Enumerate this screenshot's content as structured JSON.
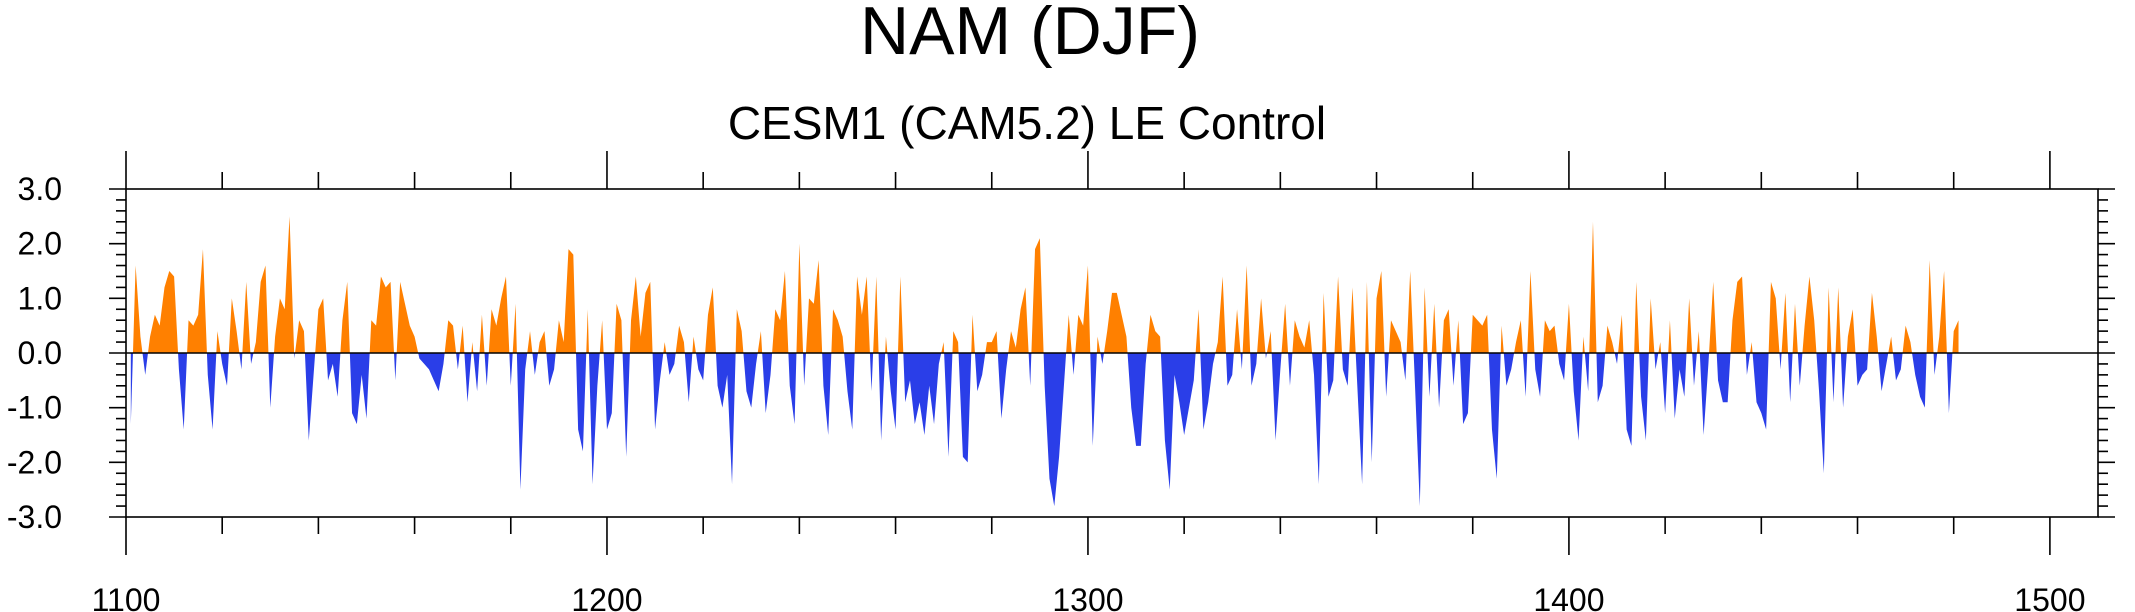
{
  "chart_data": {
    "type": "area",
    "title": "NAM (DJF)",
    "subtitle": "CESM1 (CAM5.2) LE Control",
    "xlabel": "",
    "ylabel": "",
    "xlim": [
      1100,
      1510
    ],
    "ylim": [
      -3.0,
      3.0
    ],
    "x_major_ticks": [
      1100,
      1200,
      1300,
      1400,
      1500
    ],
    "x_major_tick_labels": [
      "1100",
      "1200",
      "1300",
      "1400",
      "1500"
    ],
    "x_minor_tick_step": 20,
    "y_ticks": [
      3.0,
      2.0,
      1.0,
      0.0,
      -1.0,
      -2.0,
      -3.0
    ],
    "y_tick_labels": [
      "3.0",
      "2.0",
      "1.0",
      "0.0",
      "-1.0",
      "-2.0",
      "-3.0"
    ],
    "y_minor_tick_step": 0.2,
    "positive_color": "#ff8000",
    "negative_color": "#2a3ee8",
    "grid": false,
    "series": [
      {
        "x_start": 1101,
        "x_step": 1,
        "values": [
          -1.3,
          1.6,
          0.3,
          -0.4,
          0.3,
          0.7,
          0.5,
          1.2,
          1.5,
          1.4,
          -0.3,
          -1.4,
          0.6,
          0.5,
          0.7,
          1.9,
          -0.4,
          -1.4,
          0.4,
          -0.2,
          -0.6,
          1.0,
          0.4,
          -0.3,
          1.3,
          -0.2,
          0.2,
          1.3,
          1.6,
          -1.0,
          0.3,
          1.0,
          0.8,
          2.5,
          -0.1,
          0.6,
          0.4,
          -1.6,
          -0.4,
          0.8,
          1.0,
          -0.5,
          -0.2,
          -0.8,
          0.6,
          1.3,
          -1.1,
          -1.3,
          -0.4,
          -1.2,
          0.6,
          0.5,
          1.4,
          1.2,
          1.3,
          -0.5,
          1.3,
          0.9,
          0.5,
          0.3,
          -0.1,
          -0.2,
          -0.3,
          -0.5,
          -0.7,
          -0.2,
          0.6,
          0.5,
          -0.3,
          0.5,
          -0.9,
          0.2,
          -0.7,
          0.7,
          -0.6,
          0.8,
          0.5,
          1.0,
          1.4,
          -0.6,
          0.9,
          -2.5,
          -0.3,
          0.4,
          -0.4,
          0.2,
          0.4,
          -0.6,
          -0.3,
          0.6,
          0.2,
          1.9,
          1.8,
          -1.4,
          -1.8,
          0.8,
          -2.4,
          -0.6,
          0.6,
          -1.4,
          -1.1,
          0.9,
          0.6,
          -1.9,
          0.6,
          1.4,
          0.3,
          1.1,
          1.3,
          -1.4,
          -0.5,
          0.2,
          -0.4,
          -0.2,
          0.5,
          0.2,
          -0.9,
          0.3,
          -0.3,
          -0.5,
          0.7,
          1.2,
          -0.6,
          -1.0,
          -0.4,
          -2.4,
          0.8,
          0.4,
          -0.7,
          -1.0,
          -0.2,
          0.4,
          -1.1,
          -0.4,
          0.8,
          0.6,
          1.5,
          -0.6,
          -1.3,
          2.0,
          -0.6,
          1.0,
          0.9,
          1.7,
          -0.6,
          -1.5,
          0.8,
          0.6,
          0.3,
          -0.7,
          -1.4,
          1.4,
          0.7,
          1.4,
          -0.7,
          1.4,
          -1.6,
          0.3,
          -0.7,
          -1.4,
          1.4,
          -0.9,
          -0.5,
          -1.3,
          -0.9,
          -1.5,
          -0.6,
          -1.3,
          -0.2,
          0.2,
          -1.9,
          0.4,
          0.2,
          -1.9,
          -2.0,
          0.7,
          -0.7,
          -0.4,
          0.2,
          0.2,
          0.4,
          -1.2,
          -0.3,
          0.4,
          0.1,
          0.8,
          1.2,
          -0.6,
          1.9,
          2.1,
          -0.6,
          -2.3,
          -2.8,
          -1.9,
          -0.6,
          0.7,
          -0.4,
          0.7,
          0.5,
          1.6,
          -1.7,
          0.3,
          -0.2,
          0.4,
          1.1,
          1.1,
          0.7,
          0.3,
          -1.0,
          -1.7,
          -1.7,
          -0.2,
          0.7,
          0.4,
          0.3,
          -1.6,
          -2.5,
          -0.4,
          -0.9,
          -1.5,
          -1.0,
          -0.5,
          0.8,
          -1.4,
          -0.9,
          -0.2,
          0.2,
          1.4,
          -0.6,
          -0.4,
          0.8,
          -0.3,
          1.6,
          -0.6,
          -0.2,
          1.0,
          -0.1,
          0.4,
          -1.6,
          -0.3,
          0.9,
          -0.6,
          0.6,
          0.3,
          0.1,
          0.6,
          -0.4,
          -2.4,
          1.1,
          -0.8,
          -0.5,
          1.4,
          -0.3,
          -0.6,
          1.2,
          -0.6,
          -2.4,
          1.3,
          -2.0,
          1.0,
          1.5,
          -0.8,
          0.6,
          0.4,
          0.2,
          -0.5,
          1.5,
          -0.6,
          -2.8,
          1.2,
          -0.8,
          0.9,
          -1.0,
          0.6,
          0.8,
          -0.6,
          0.6,
          -1.3,
          -1.1,
          0.7,
          0.6,
          0.5,
          0.7,
          -1.4,
          -2.3,
          0.5,
          -0.6,
          -0.3,
          0.2,
          0.6,
          -0.8,
          1.5,
          -0.3,
          -0.8,
          0.6,
          0.4,
          0.5,
          -0.2,
          -0.5,
          0.9,
          -0.7,
          -1.6,
          0.3,
          -0.7,
          2.4,
          -0.9,
          -0.6,
          0.5,
          0.2,
          -0.2,
          0.7,
          -1.4,
          -1.7,
          1.3,
          -0.8,
          -1.6,
          1.0,
          -0.3,
          0.2,
          -1.1,
          0.6,
          -1.2,
          -0.3,
          -0.8,
          1.0,
          -0.6,
          0.4,
          -1.5,
          -0.2,
          1.3,
          -0.5,
          -0.9,
          -0.9,
          0.6,
          1.3,
          1.4,
          -0.4,
          0.2,
          -0.9,
          -1.1,
          -1.4,
          1.3,
          1.0,
          -0.3,
          1.1,
          -0.9,
          0.9,
          -0.6,
          0.5,
          1.4,
          0.6,
          -0.7,
          -2.2,
          1.2,
          -0.9,
          1.2,
          -1.0,
          0.3,
          0.8,
          -0.6,
          -0.4,
          -0.3,
          1.1,
          0.3,
          -0.7,
          -0.2,
          0.3,
          -0.5,
          -0.3,
          0.5,
          0.2,
          -0.4,
          -0.8,
          -1.0,
          1.7,
          -0.4,
          0.3,
          1.5,
          -1.1,
          0.4,
          0.6
        ]
      }
    ]
  }
}
